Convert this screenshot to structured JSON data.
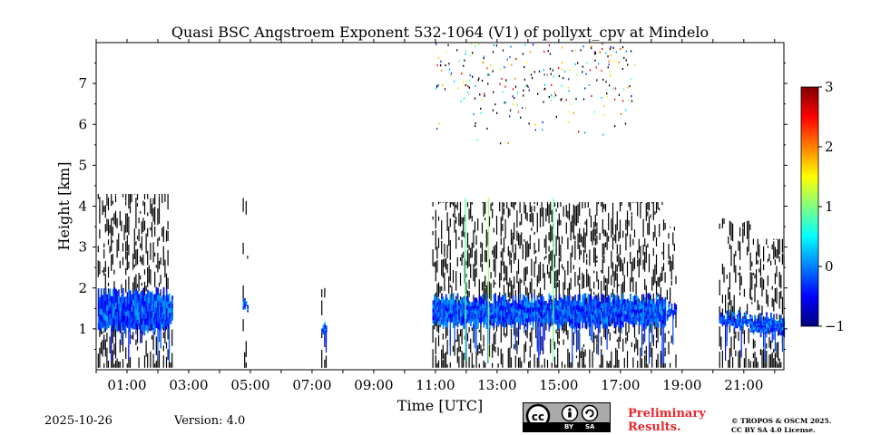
{
  "chart_data": {
    "type": "heatmap",
    "title": "Quasi BSC Angstroem Exponent 532-1064 (V1) of pollyxt_cpv at Mindelo",
    "xlabel": "Time [UTC]",
    "ylabel": "Height [km]",
    "xlim": [
      0.0,
      22.3
    ],
    "ylim": [
      0.0,
      8.0
    ],
    "x_ticks": [
      1,
      3,
      5,
      7,
      9,
      11,
      13,
      15,
      17,
      19,
      21
    ],
    "x_tick_labels": [
      "01:00",
      "03:00",
      "05:00",
      "07:00",
      "09:00",
      "11:00",
      "13:00",
      "15:00",
      "17:00",
      "19:00",
      "21:00"
    ],
    "y_ticks": [
      1,
      2,
      3,
      4,
      5,
      6,
      7
    ],
    "y_tick_labels": [
      "1",
      "2",
      "3",
      "4",
      "5",
      "6",
      "7"
    ],
    "colorbar": {
      "min": -1,
      "max": 3,
      "ticks": [
        -1,
        0,
        1,
        2,
        3
      ],
      "tick_labels": [
        "−1",
        "0",
        "1",
        "2",
        "3"
      ],
      "colormap": "jet"
    },
    "signal_columns": [
      {
        "t0": 0.05,
        "t1": 2.35,
        "top": 4.3,
        "layer_top": 1.9,
        "layer_bottom": 1.0,
        "density": 0.55
      },
      {
        "t0": 2.35,
        "t1": 2.45,
        "top": 1.9,
        "layer_top": 1.8,
        "layer_bottom": 1.2,
        "density": 0.6
      },
      {
        "t0": 4.75,
        "t1": 4.9,
        "top": 4.2,
        "layer_top": 1.7,
        "layer_bottom": 1.5,
        "density": 0.2
      },
      {
        "t0": 7.3,
        "t1": 7.45,
        "top": 2.0,
        "layer_top": 1.1,
        "layer_bottom": 0.85,
        "density": 0.6
      },
      {
        "t0": 10.9,
        "t1": 18.45,
        "top": 4.1,
        "layer_top": 1.75,
        "layer_bottom": 1.1,
        "density": 0.55
      },
      {
        "t0": 18.5,
        "t1": 18.8,
        "top": 3.5,
        "layer_top": 1.55,
        "layer_bottom": 1.3,
        "density": 0.4
      },
      {
        "t0": 20.2,
        "t1": 21.2,
        "top": 3.7,
        "layer_top": 1.35,
        "layer_bottom": 1.05,
        "density": 0.4
      },
      {
        "t0": 21.2,
        "t1": 22.3,
        "top": 3.2,
        "layer_top": 1.3,
        "layer_bottom": 0.9,
        "density": 0.55
      }
    ],
    "layer_value_range": [
      -0.6,
      0.2
    ],
    "upper_scatter": {
      "t0": 11.0,
      "t1": 17.5,
      "h0": 5.5,
      "h1": 8.0,
      "value_range": [
        -0.5,
        2.8
      ]
    }
  },
  "footer": {
    "date": "2025-10-26",
    "version": "Version: 4.0",
    "cc_by": "BY",
    "cc_sa": "SA",
    "prelim_line1": "Preliminary",
    "prelim_line2": "Results.",
    "license_line1": "© TROPOS & OSCM 2025.",
    "license_line2": "CC BY SA 4.0 License."
  },
  "colors": {
    "layer_core": "#1e90ff",
    "background": "#ffffff",
    "noise": "#000000",
    "prelim_text": "#e8262a"
  }
}
